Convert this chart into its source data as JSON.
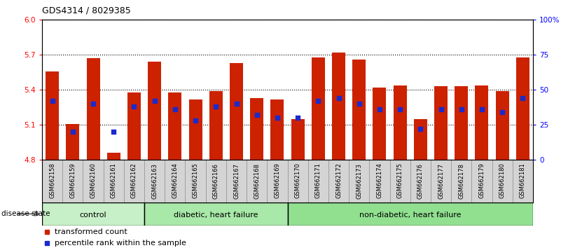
{
  "title": "GDS4314 / 8029385",
  "samples": [
    "GSM662158",
    "GSM662159",
    "GSM662160",
    "GSM662161",
    "GSM662162",
    "GSM662163",
    "GSM662164",
    "GSM662165",
    "GSM662166",
    "GSM662167",
    "GSM662168",
    "GSM662169",
    "GSM662170",
    "GSM662171",
    "GSM662172",
    "GSM662173",
    "GSM662174",
    "GSM662175",
    "GSM662176",
    "GSM662177",
    "GSM662178",
    "GSM662179",
    "GSM662180",
    "GSM662181"
  ],
  "red_values": [
    5.56,
    5.11,
    5.67,
    4.86,
    5.38,
    5.64,
    5.38,
    5.32,
    5.39,
    5.63,
    5.33,
    5.32,
    5.15,
    5.68,
    5.72,
    5.66,
    5.42,
    5.44,
    5.15,
    5.43,
    5.43,
    5.44,
    5.39,
    5.68
  ],
  "blue_values_pct": [
    42,
    20,
    40,
    20,
    38,
    42,
    36,
    28,
    38,
    40,
    32,
    30,
    30,
    42,
    44,
    40,
    36,
    36,
    22,
    36,
    36,
    36,
    34,
    44
  ],
  "ymin": 4.8,
  "ymax": 6.0,
  "yticks_red": [
    4.8,
    5.1,
    5.4,
    5.7,
    6.0
  ],
  "yticks_blue_pct": [
    0,
    25,
    50,
    75,
    100
  ],
  "bar_color": "#cc2200",
  "blue_color": "#1a2acc",
  "bar_width": 0.65,
  "group_defs": [
    {
      "label": "control",
      "start": 0,
      "end": 5
    },
    {
      "label": "diabetic, heart failure",
      "start": 5,
      "end": 12
    },
    {
      "label": "non-diabetic, heart failure",
      "start": 12,
      "end": 24
    }
  ],
  "group_light_green": "#c8f0c8",
  "group_mid_green": "#a8e8a8",
  "group_dark_green": "#90e090",
  "legend_red": "transformed count",
  "legend_blue": "percentile rank within the sample"
}
